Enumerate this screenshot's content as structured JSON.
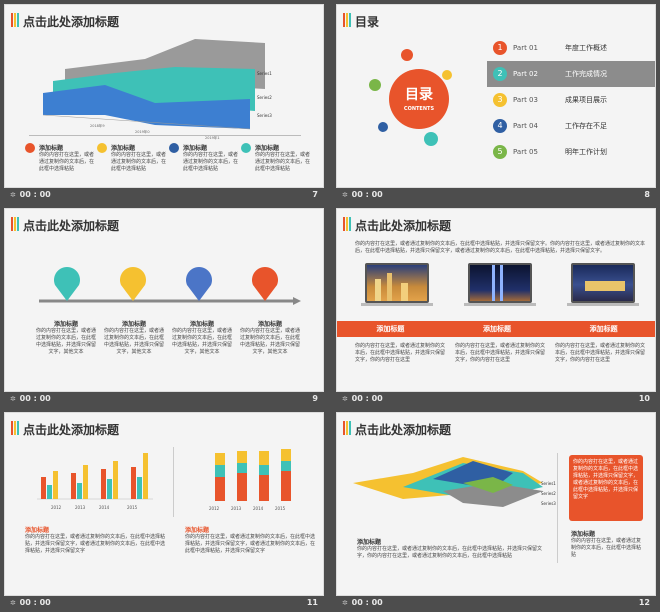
{
  "footer_time": "00 : 00",
  "colors": {
    "orange": "#e8542b",
    "yellow": "#f5c130",
    "blue": "#2f5fa3",
    "teal": "#3ec1b7",
    "green": "#7ab648",
    "gray": "#8c8c8c"
  },
  "slides": [
    {
      "num": "7",
      "title": "点击此处添加标题",
      "axis_labels": [
        "Series1",
        "Series2",
        "Series3"
      ],
      "x_ticks": [
        "2018年9",
        "2019年0",
        "2019年1"
      ],
      "items": [
        {
          "label": "添加标题",
          "text": "你的内容打在这里，或者通过复制你的文本后，在此框中选择粘贴"
        },
        {
          "label": "添加标题",
          "text": "你的内容打在这里，或者通过复制你的文本后，在此框中选择粘贴"
        },
        {
          "label": "添加标题",
          "text": "你的内容打在这里，或者通过复制你的文本后，在此框中选择粘贴"
        },
        {
          "label": "添加标题",
          "text": "你的内容打在这里，或者通过复制你的文本后，在此框中选择粘贴"
        }
      ]
    },
    {
      "num": "8",
      "title": "目录",
      "circle_title": "目录",
      "circle_sub": "CONTENTS",
      "toc": [
        {
          "n": "1",
          "part": "Part 01",
          "text": "年度工作概述"
        },
        {
          "n": "2",
          "part": "Part 02",
          "text": "工作完成情况"
        },
        {
          "n": "3",
          "part": "Part 03",
          "text": "成果项目展示"
        },
        {
          "n": "4",
          "part": "Part 04",
          "text": "工作存在不足"
        },
        {
          "n": "5",
          "part": "Part 05",
          "text": "明年工作计划"
        }
      ]
    },
    {
      "num": "9",
      "title": "点击此处添加标题",
      "items": [
        {
          "label": "添加标题",
          "text": "你的内容打在这里，或者通过复制你的文本后，在此框中选择粘贴，并选择只保留文字，其他文本"
        },
        {
          "label": "添加标题",
          "text": "你的内容打在这里，或者通过复制你的文本后，在此框中选择粘贴，并选择只保留文字，其他文本"
        },
        {
          "label": "添加标题",
          "text": "你的内容打在这里，或者通过复制你的文本后，在此框中选择粘贴，并选择只保留文字，其他文本"
        },
        {
          "label": "添加标题",
          "text": "你的内容打在这里，或者通过复制你的文本后，在此框中选择粘贴，并选择只保留文字，其他文本"
        }
      ]
    },
    {
      "num": "10",
      "title": "点击此处添加标题",
      "intro": "你的内容打在这里，或者通过复制你的文本后，在此框中选择粘贴，并选择只保留文字。你的内容打在这里，或者通过复制你的文本后，在此框中选择粘贴，并选择只保留文字，或者通过复制你的文本后，在此框中选择粘贴，并选择只保留文字。",
      "band": [
        "添加标题",
        "添加标题",
        "添加标题"
      ],
      "cols": [
        "你的内容打在这里，或者通过复制你的文本后，在此框中选择粘贴，并选择只保留文字，你的内容打在这里",
        "你的内容打在这里，或者通过复制你的文本后，在此框中选择粘贴，并选择只保留文字，你的内容打在这里",
        "你的内容打在这里，或者通过复制你的文本后，在此框中选择粘贴，并选择只保留文字，你的内容打在这里"
      ]
    },
    {
      "num": "11",
      "title": "点击此处添加标题",
      "left_years": [
        "2012",
        "2013",
        "2014",
        "2015"
      ],
      "right_years": [
        "2012",
        "2013",
        "2014",
        "2015"
      ],
      "left_label": "添加标题",
      "right_label": "添加标题",
      "left_text": "你的内容打在这里，或者通过复制你的文本后，在此框中选择粘贴，并选择只保留文字，或者通过复制你的文本后，在此框中选择粘贴，并选择只保留文字",
      "right_text": "你的内容打在这里，或者通过复制你的文本后，在此框中选择粘贴，并选择只保留文字，或者通过复制你的文本后，在此框中选择粘贴，并选择只保留文字"
    },
    {
      "num": "12",
      "title": "点击此处添加标题",
      "series": [
        "Series1",
        "Series2",
        "Series3"
      ],
      "label1": "添加标题",
      "text1": "你的内容打在这里，或者通过复制你的文本后，在此框中选择粘贴，并选择只保留文字，你的内容打在这里，或者通过复制你的文本后，在此框中选择粘贴",
      "orange_box": "你的内容打在这里，或者通过复制你的文本后，在此框中选择粘贴，并选择只保留文字，或者通过复制你的文本后，在此框中选择粘贴，并选择只保留文字",
      "label2": "添加标题",
      "text2": "你的内容打在这里，或者通过复制你的文本后，在此框中选择粘贴"
    }
  ]
}
